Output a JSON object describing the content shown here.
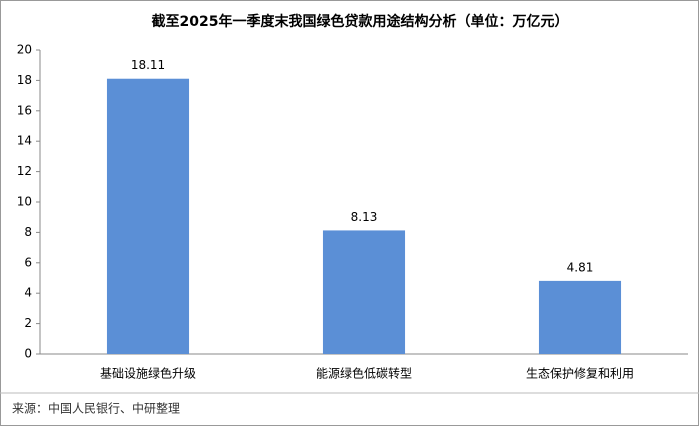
{
  "chart_data": {
    "type": "bar",
    "title": "截至2025年一季度末我国绿色贷款用途结构分析（单位：万亿元）",
    "categories": [
      "基础设施绿色升级",
      "能源绿色低碳转型",
      "生态保护修复和利用"
    ],
    "values": [
      18.11,
      8.13,
      4.81
    ],
    "color": "#5b8fd6",
    "ylim": [
      0,
      20
    ],
    "yticks": [
      0,
      2,
      4,
      6,
      8,
      10,
      12,
      14,
      16,
      18,
      20
    ],
    "grid": false,
    "source": "来源：中国人民银行、中研整理"
  }
}
